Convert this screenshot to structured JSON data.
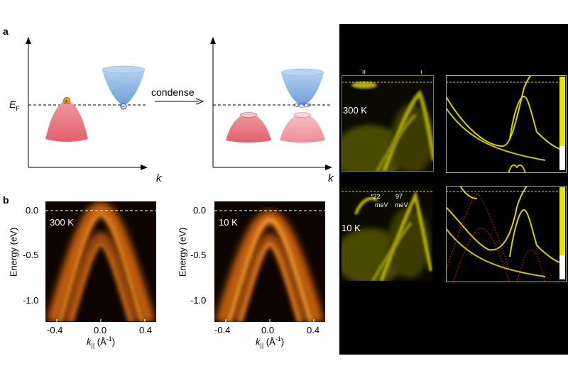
{
  "panel_a": {
    "letter": "a",
    "fermi_label": "E",
    "fermi_sub": "F",
    "k_label": "k",
    "arrow_label": "condense",
    "plus": "+",
    "minus": "−"
  },
  "panel_b": {
    "letter": "b",
    "ylabel": "Energy (eV)",
    "xlabel_main": "k",
    "xlabel_sub": "||",
    "xlabel_unit": " (Å",
    "xlabel_sup": "-1",
    "xlabel_close": ")",
    "yticks": [
      "0.0",
      "-0.5",
      "-1.0"
    ],
    "xticks": [
      "-0.4",
      "0.0",
      "0.4"
    ],
    "left_temp": "300 K",
    "right_temp": "10 K"
  },
  "right_panels": {
    "top_temp": "300 K",
    "bottom_temp": "10 K",
    "gap1_value": "*22",
    "gap1_unit": "meV",
    "gap2_value": "97",
    "gap2_unit": "meV",
    "top_fragment": "ˈıı",
    "top_fragment2": "ı"
  },
  "colors": {
    "valence": "#e8707a",
    "conduction": "#8ab4e6",
    "arpes_orange": "#e27812",
    "yellow": "#e7e400"
  }
}
